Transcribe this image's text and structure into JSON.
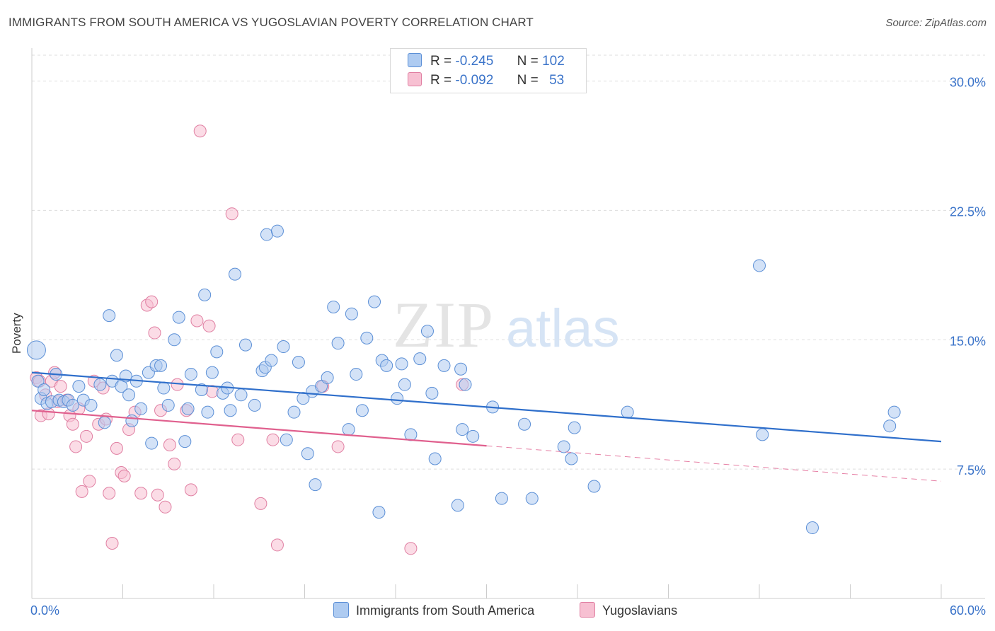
{
  "title": "IMMIGRANTS FROM SOUTH AMERICA VS YUGOSLAVIAN POVERTY CORRELATION CHART",
  "source": "Source: ZipAtlas.com",
  "watermark": {
    "zip": "ZIP",
    "atlas": "atlas"
  },
  "legend": {
    "series1": {
      "r_label": "R =",
      "r_value": "-0.245",
      "n_label": "N =",
      "n_value": "102"
    },
    "series2": {
      "r_label": "R =",
      "r_value": "-0.092",
      "n_label": "N =",
      "n_value": "53"
    }
  },
  "colors": {
    "blue_fill": "#aecbf1",
    "blue_stroke": "#5b8fd6",
    "blue_line": "#2f6fcb",
    "pink_fill": "#f7c0d2",
    "pink_stroke": "#e07fa2",
    "pink_line": "#e0608e",
    "grid": "#dddddd",
    "tick_text": "#3a73c9"
  },
  "chart_data": {
    "type": "scatter",
    "title": "IMMIGRANTS FROM SOUTH AMERICA VS YUGOSLAVIAN POVERTY CORRELATION CHART",
    "xlabel": "",
    "ylabel": "Poverty",
    "xlim": [
      0,
      60
    ],
    "ylim": [
      0,
      31.5
    ],
    "x_tick_labels": [
      "0.0%",
      "60.0%"
    ],
    "y_ticks": [
      7.5,
      15.0,
      22.5,
      30.0
    ],
    "y_tick_labels": [
      "7.5%",
      "15.0%",
      "22.5%",
      "30.0%"
    ],
    "x_minor_ticks": [
      0,
      6,
      12,
      18,
      24,
      30,
      36,
      42,
      48,
      54,
      60
    ],
    "grid": true,
    "legend_position": "top-center",
    "series": [
      {
        "name": "Immigrants from South America",
        "trend": {
          "x": [
            0,
            60
          ],
          "y": [
            13.1,
            9.1
          ]
        },
        "points": [
          [
            0.3,
            14.4
          ],
          [
            0.4,
            12.6
          ],
          [
            0.6,
            11.6
          ],
          [
            0.8,
            12.1
          ],
          [
            1.0,
            11.3
          ],
          [
            1.3,
            11.4
          ],
          [
            1.6,
            13.0
          ],
          [
            1.8,
            11.5
          ],
          [
            2.1,
            11.4
          ],
          [
            2.4,
            11.5
          ],
          [
            2.7,
            11.2
          ],
          [
            3.1,
            12.3
          ],
          [
            3.4,
            11.5
          ],
          [
            3.9,
            11.2
          ],
          [
            4.5,
            12.4
          ],
          [
            4.8,
            10.2
          ],
          [
            5.1,
            16.4
          ],
          [
            5.3,
            12.6
          ],
          [
            5.6,
            14.1
          ],
          [
            5.9,
            12.3
          ],
          [
            6.2,
            12.9
          ],
          [
            6.4,
            11.8
          ],
          [
            6.6,
            10.3
          ],
          [
            6.9,
            12.6
          ],
          [
            7.2,
            11.0
          ],
          [
            7.7,
            13.1
          ],
          [
            7.9,
            9.0
          ],
          [
            8.2,
            13.5
          ],
          [
            8.5,
            13.5
          ],
          [
            8.7,
            12.2
          ],
          [
            9.0,
            11.2
          ],
          [
            9.4,
            15.0
          ],
          [
            9.7,
            16.3
          ],
          [
            10.1,
            9.1
          ],
          [
            10.3,
            11.0
          ],
          [
            10.5,
            13.0
          ],
          [
            11.2,
            12.1
          ],
          [
            11.4,
            17.6
          ],
          [
            11.6,
            10.8
          ],
          [
            11.9,
            13.1
          ],
          [
            12.2,
            14.3
          ],
          [
            12.6,
            11.9
          ],
          [
            12.9,
            12.2
          ],
          [
            13.1,
            10.9
          ],
          [
            13.4,
            18.8
          ],
          [
            13.8,
            11.8
          ],
          [
            14.1,
            14.7
          ],
          [
            14.7,
            11.2
          ],
          [
            15.2,
            13.2
          ],
          [
            15.4,
            13.4
          ],
          [
            15.5,
            21.1
          ],
          [
            15.8,
            13.8
          ],
          [
            16.2,
            21.3
          ],
          [
            16.6,
            14.6
          ],
          [
            16.8,
            9.2
          ],
          [
            17.3,
            10.8
          ],
          [
            17.6,
            13.7
          ],
          [
            17.9,
            11.6
          ],
          [
            18.2,
            8.4
          ],
          [
            18.5,
            12.0
          ],
          [
            18.7,
            6.6
          ],
          [
            19.1,
            12.3
          ],
          [
            19.5,
            12.8
          ],
          [
            19.9,
            16.9
          ],
          [
            20.2,
            14.8
          ],
          [
            20.9,
            9.8
          ],
          [
            21.1,
            16.5
          ],
          [
            21.4,
            13.0
          ],
          [
            21.8,
            10.9
          ],
          [
            22.1,
            15.1
          ],
          [
            22.6,
            17.2
          ],
          [
            22.9,
            5.0
          ],
          [
            23.1,
            13.8
          ],
          [
            23.4,
            13.5
          ],
          [
            24.1,
            11.6
          ],
          [
            24.4,
            13.6
          ],
          [
            24.6,
            12.4
          ],
          [
            25.0,
            9.5
          ],
          [
            25.6,
            13.9
          ],
          [
            26.1,
            15.5
          ],
          [
            26.4,
            11.9
          ],
          [
            26.6,
            8.1
          ],
          [
            27.2,
            13.5
          ],
          [
            28.1,
            5.4
          ],
          [
            28.3,
            13.3
          ],
          [
            28.4,
            9.8
          ],
          [
            28.6,
            12.4
          ],
          [
            29.1,
            9.4
          ],
          [
            30.4,
            11.1
          ],
          [
            31.0,
            5.8
          ],
          [
            32.5,
            10.1
          ],
          [
            33.0,
            5.8
          ],
          [
            35.1,
            8.8
          ],
          [
            35.6,
            8.1
          ],
          [
            35.8,
            9.9
          ],
          [
            37.1,
            6.5
          ],
          [
            39.3,
            10.8
          ],
          [
            48.0,
            19.3
          ],
          [
            48.2,
            9.5
          ],
          [
            51.5,
            4.1
          ],
          [
            56.6,
            10.0
          ],
          [
            56.9,
            10.8
          ]
        ]
      },
      {
        "name": "Yugoslavians",
        "trend": {
          "x": [
            0,
            60
          ],
          "y": [
            10.9,
            6.8
          ]
        },
        "trend_solid_until": 30,
        "points": [
          [
            0.3,
            12.8
          ],
          [
            0.5,
            12.6
          ],
          [
            0.6,
            10.6
          ],
          [
            0.9,
            11.8
          ],
          [
            1.1,
            10.7
          ],
          [
            1.3,
            12.6
          ],
          [
            1.5,
            13.1
          ],
          [
            1.7,
            11.4
          ],
          [
            1.9,
            12.3
          ],
          [
            2.3,
            11.5
          ],
          [
            2.5,
            10.6
          ],
          [
            2.7,
            10.1
          ],
          [
            2.9,
            8.8
          ],
          [
            3.1,
            11.0
          ],
          [
            3.3,
            6.2
          ],
          [
            3.6,
            9.4
          ],
          [
            3.8,
            6.8
          ],
          [
            4.1,
            12.6
          ],
          [
            4.4,
            10.1
          ],
          [
            4.7,
            12.2
          ],
          [
            4.9,
            10.4
          ],
          [
            5.1,
            6.1
          ],
          [
            5.3,
            3.2
          ],
          [
            5.6,
            8.7
          ],
          [
            5.9,
            7.3
          ],
          [
            6.1,
            7.1
          ],
          [
            6.4,
            9.8
          ],
          [
            6.8,
            10.8
          ],
          [
            7.2,
            6.1
          ],
          [
            7.6,
            17.0
          ],
          [
            7.9,
            17.2
          ],
          [
            8.1,
            15.4
          ],
          [
            8.3,
            6.0
          ],
          [
            8.5,
            10.9
          ],
          [
            8.8,
            5.3
          ],
          [
            9.1,
            8.9
          ],
          [
            9.4,
            7.8
          ],
          [
            9.6,
            12.4
          ],
          [
            10.2,
            10.9
          ],
          [
            10.5,
            6.3
          ],
          [
            10.9,
            16.1
          ],
          [
            11.1,
            27.1
          ],
          [
            11.7,
            15.8
          ],
          [
            11.9,
            12.0
          ],
          [
            13.2,
            22.3
          ],
          [
            13.6,
            9.2
          ],
          [
            15.1,
            5.5
          ],
          [
            15.9,
            9.2
          ],
          [
            16.2,
            3.1
          ],
          [
            19.2,
            12.3
          ],
          [
            20.2,
            8.8
          ],
          [
            25.0,
            2.9
          ],
          [
            28.4,
            12.4
          ]
        ]
      }
    ]
  },
  "bottom_legend": {
    "item1": "Immigrants from South America",
    "item2": "Yugoslavians"
  }
}
